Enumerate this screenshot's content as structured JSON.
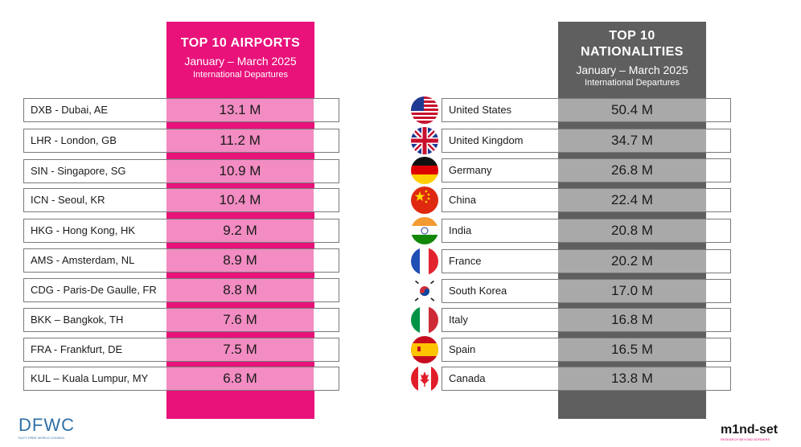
{
  "airports": {
    "title": "TOP 10 AIRPORTS",
    "period": "January – March 2025",
    "subtitle": "International Departures",
    "rows": [
      {
        "name": "DXB - Dubai, AE",
        "value": "13.1 M"
      },
      {
        "name": "LHR - London, GB",
        "value": "11.2 M"
      },
      {
        "name": "SIN - Singapore, SG",
        "value": "10.9 M"
      },
      {
        "name": "ICN - Seoul, KR",
        "value": "10.4 M"
      },
      {
        "name": "HKG - Hong Kong, HK",
        "value": "9.2 M"
      },
      {
        "name": "AMS - Amsterdam, NL",
        "value": "8.9 M"
      },
      {
        "name": "CDG - Paris-De Gaulle, FR",
        "value": "8.8 M"
      },
      {
        "name": "BKK – Bangkok, TH",
        "value": "7.6 M"
      },
      {
        "name": "FRA - Frankfurt, DE",
        "value": "7.5 M"
      },
      {
        "name": "KUL – Kuala Lumpur, MY",
        "value": "6.8 M"
      }
    ]
  },
  "nationalities": {
    "title_line1": "TOP 10",
    "title_line2": "NATIONALITIES",
    "period": "January – March 2025",
    "subtitle": "International Departures",
    "rows": [
      {
        "name": "United States",
        "value": "50.4 M",
        "flag": "us-flag-icon"
      },
      {
        "name": "United Kingdom",
        "value": "34.7 M",
        "flag": "uk-flag-icon"
      },
      {
        "name": "Germany",
        "value": "26.8 M",
        "flag": "germany-flag-icon"
      },
      {
        "name": "China",
        "value": "22.4 M",
        "flag": "china-flag-icon"
      },
      {
        "name": "India",
        "value": "20.8 M",
        "flag": "india-flag-icon"
      },
      {
        "name": "France",
        "value": "20.2 M",
        "flag": "france-flag-icon"
      },
      {
        "name": "South Korea",
        "value": "17.0 M",
        "flag": "south-korea-flag-icon"
      },
      {
        "name": "Italy",
        "value": "16.8 M",
        "flag": "italy-flag-icon"
      },
      {
        "name": "Spain",
        "value": "16.5 M",
        "flag": "spain-flag-icon"
      },
      {
        "name": "Canada",
        "value": "13.8 M",
        "flag": "canada-flag-icon"
      }
    ]
  },
  "colors": {
    "pink_band": "#e8127a",
    "pink_cell": "#f28cc2",
    "gray_band": "#5f5f5f",
    "gray_cell": "#a9a9a9"
  },
  "logos": {
    "left": {
      "text": "DFWC",
      "tagline": "DUTY FREE WORLD COUNCIL"
    },
    "right": {
      "text": "m1nd-set",
      "tagline": "RESEARCH BEYOND BORDERS"
    }
  }
}
